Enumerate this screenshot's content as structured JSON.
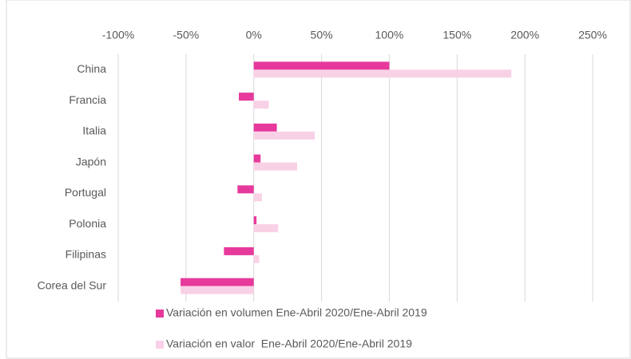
{
  "chart_data": {
    "type": "bar",
    "orientation": "horizontal",
    "categories": [
      "China",
      "Francia",
      "Italia",
      "Japón",
      "Portugal",
      "Polonia",
      "Filipinas",
      "Corea del Sur"
    ],
    "series": [
      {
        "name": "Variación en volumen Ene-Abril 2020/Ene-Abril 2019",
        "color": "#e6399b",
        "values": [
          100,
          -11,
          17,
          5,
          -12,
          2,
          -22,
          -54
        ]
      },
      {
        "name": "Variación en valor  Ene-Abril 2020/Ene-Abril 2019",
        "color": "#f9d1e6",
        "values": [
          190,
          11,
          45,
          32,
          6,
          18,
          4,
          -54
        ]
      }
    ],
    "xlim": [
      -100,
      250
    ],
    "xticks": [
      {
        "value": -100,
        "label": "-100%"
      },
      {
        "value": -50,
        "label": "-50%"
      },
      {
        "value": 0,
        "label": "0%"
      },
      {
        "value": 50,
        "label": "50%"
      },
      {
        "value": 100,
        "label": "100%"
      },
      {
        "value": 150,
        "label": "150%"
      },
      {
        "value": 200,
        "label": "200%"
      },
      {
        "value": 250,
        "label": "250%"
      }
    ],
    "grid": true,
    "legend": "bottom"
  }
}
